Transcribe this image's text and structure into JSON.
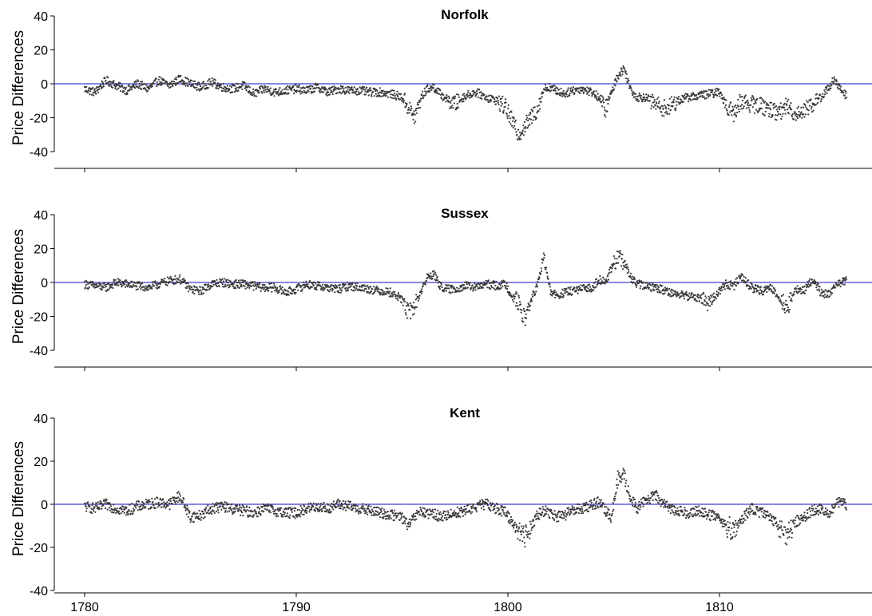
{
  "colors": {
    "points": "#3a3a3a",
    "zero_line": "#3d3dd6",
    "axis": "#000000",
    "background": "#ffffff"
  },
  "chart_data": [
    {
      "type": "scatter",
      "title": "Norfolk",
      "ylabel": "Price Differences",
      "xlabel": "",
      "xlim": [
        1778.5,
        1816.4
      ],
      "ylim": [
        -47,
        40
      ],
      "yticks": [
        -40,
        -20,
        0,
        20,
        40
      ],
      "xtick_marks": [
        1780,
        1790,
        1800,
        1810
      ],
      "xtick_labels": [],
      "reference_line": {
        "y": 0
      },
      "grid": false,
      "series": [
        {
          "x": [
            1780.0,
            1780.5,
            1781.0,
            1781.5,
            1782.0,
            1782.5,
            1783.0,
            1783.5,
            1784.0,
            1784.5,
            1785.0,
            1785.5,
            1786.0,
            1786.5,
            1787.0,
            1787.5,
            1788.0,
            1788.5,
            1789.0,
            1789.5,
            1790.0,
            1790.5,
            1791.0,
            1791.5,
            1792.0,
            1792.5,
            1793.0,
            1793.5,
            1794.0,
            1794.5,
            1795.0,
            1795.3,
            1795.6,
            1795.9,
            1796.2,
            1796.5,
            1796.8,
            1797.1,
            1797.5,
            1798.0,
            1798.5,
            1799.0,
            1799.5,
            1799.9,
            1800.2,
            1800.5,
            1800.8,
            1801.1,
            1801.4,
            1801.7,
            1802.0,
            1802.3,
            1802.7,
            1803.0,
            1803.5,
            1804.0,
            1804.3,
            1804.6,
            1804.9,
            1805.2,
            1805.5,
            1805.8,
            1806.1,
            1806.5,
            1807.0,
            1807.5,
            1808.0,
            1808.5,
            1809.0,
            1809.5,
            1810.0,
            1810.3,
            1810.7,
            1811.0,
            1811.5,
            1812.0,
            1812.4,
            1812.8,
            1813.2,
            1813.6,
            1814.0,
            1814.4,
            1814.8,
            1815.1,
            1815.4,
            1815.7,
            1816.0
          ],
          "y": [
            -3,
            -5,
            2,
            -1,
            -4,
            0,
            -3,
            2,
            -1,
            3,
            0,
            -2,
            1,
            -2,
            -3,
            -1,
            -6,
            -3,
            -5,
            -4,
            -3,
            -4,
            -2,
            -5,
            -3,
            -4,
            -4,
            -5,
            -5,
            -6,
            -8,
            -14,
            -20,
            -8,
            -3,
            -2,
            -6,
            -9,
            -12,
            -7,
            -5,
            -8,
            -10,
            -14,
            -22,
            -30,
            -25,
            -20,
            -15,
            -3,
            -2,
            -4,
            -6,
            -4,
            -3,
            -5,
            -8,
            -15,
            -5,
            5,
            9,
            -3,
            -8,
            -8,
            -12,
            -15,
            -10,
            -8,
            -7,
            -6,
            -5,
            -12,
            -18,
            -10,
            -12,
            -13,
            -15,
            -17,
            -13,
            -18,
            -15,
            -12,
            -8,
            -3,
            2,
            -3,
            -7
          ]
        }
      ]
    },
    {
      "type": "scatter",
      "title": "Sussex",
      "ylabel": "Price Differences",
      "xlabel": "",
      "xlim": [
        1778.5,
        1816.4
      ],
      "ylim": [
        -47,
        40
      ],
      "yticks": [
        -40,
        -20,
        0,
        20,
        40
      ],
      "xtick_marks": [
        1780,
        1790,
        1800,
        1810
      ],
      "xtick_labels": [],
      "reference_line": {
        "y": 0
      },
      "grid": false,
      "series": [
        {
          "x": [
            1780.0,
            1780.5,
            1781.0,
            1781.5,
            1782.0,
            1782.5,
            1783.0,
            1783.5,
            1784.0,
            1784.5,
            1785.0,
            1785.5,
            1786.0,
            1786.5,
            1787.0,
            1787.5,
            1788.0,
            1788.5,
            1789.0,
            1789.5,
            1790.0,
            1790.5,
            1791.0,
            1791.5,
            1792.0,
            1792.5,
            1793.0,
            1793.5,
            1794.0,
            1794.5,
            1795.0,
            1795.3,
            1795.6,
            1795.9,
            1796.2,
            1796.5,
            1796.8,
            1797.1,
            1797.5,
            1798.0,
            1798.5,
            1799.0,
            1799.5,
            1799.9,
            1800.2,
            1800.5,
            1800.8,
            1801.1,
            1801.4,
            1801.7,
            1802.0,
            1802.3,
            1802.7,
            1803.0,
            1803.5,
            1804.0,
            1804.3,
            1804.6,
            1804.9,
            1805.2,
            1805.5,
            1805.8,
            1806.1,
            1806.5,
            1807.0,
            1807.5,
            1808.0,
            1808.5,
            1809.0,
            1809.5,
            1810.0,
            1810.3,
            1810.7,
            1811.0,
            1811.5,
            1812.0,
            1812.4,
            1812.8,
            1813.2,
            1813.6,
            1814.0,
            1814.4,
            1814.8,
            1815.1,
            1815.4,
            1815.7,
            1816.0
          ],
          "y": [
            -1,
            -2,
            -3,
            0,
            -1,
            -2,
            -3,
            -1,
            1,
            2,
            -4,
            -5,
            -1,
            0,
            -1,
            -1,
            -2,
            -3,
            -3,
            -6,
            -4,
            -1,
            -2,
            -3,
            -4,
            -2,
            -3,
            -4,
            -5,
            -6,
            -10,
            -18,
            -14,
            -5,
            3,
            5,
            -2,
            -4,
            -4,
            -2,
            -3,
            -1,
            -2,
            -1,
            -8,
            -12,
            -22,
            -10,
            -2,
            15,
            -5,
            -8,
            -6,
            -5,
            -4,
            -3,
            2,
            0,
            8,
            15,
            12,
            3,
            -1,
            -2,
            -3,
            -5,
            -7,
            -8,
            -9,
            -12,
            -5,
            -1,
            -2,
            4,
            -3,
            -5,
            -3,
            -8,
            -15,
            -4,
            -5,
            2,
            -6,
            -7,
            -4,
            0,
            1
          ]
        }
      ]
    },
    {
      "type": "scatter",
      "title": "Kent",
      "ylabel": "Price Differences",
      "xlabel": "",
      "xlim": [
        1778.5,
        1816.4
      ],
      "ylim": [
        -52,
        40
      ],
      "yticks": [
        -40,
        -20,
        0,
        20,
        40
      ],
      "xtick_marks": [
        1780,
        1790,
        1800,
        1810
      ],
      "xtick_labels": [
        "1780",
        "1790",
        "1800",
        "1810"
      ],
      "reference_line": {
        "y": 0
      },
      "grid": false,
      "series": [
        {
          "x": [
            1780.0,
            1780.5,
            1781.0,
            1781.5,
            1782.0,
            1782.5,
            1783.0,
            1783.5,
            1784.0,
            1784.5,
            1785.0,
            1785.5,
            1786.0,
            1786.5,
            1787.0,
            1787.5,
            1788.0,
            1788.5,
            1789.0,
            1789.5,
            1790.0,
            1790.5,
            1791.0,
            1791.5,
            1792.0,
            1792.5,
            1793.0,
            1793.5,
            1794.0,
            1794.5,
            1795.0,
            1795.3,
            1795.6,
            1795.9,
            1796.2,
            1796.5,
            1796.8,
            1797.1,
            1797.5,
            1798.0,
            1798.5,
            1799.0,
            1799.5,
            1799.9,
            1800.2,
            1800.5,
            1800.8,
            1801.1,
            1801.4,
            1801.7,
            1802.0,
            1802.3,
            1802.7,
            1803.0,
            1803.5,
            1804.0,
            1804.3,
            1804.6,
            1804.9,
            1805.2,
            1805.5,
            1805.8,
            1806.1,
            1806.5,
            1807.0,
            1807.5,
            1808.0,
            1808.5,
            1809.0,
            1809.5,
            1810.0,
            1810.3,
            1810.7,
            1811.0,
            1811.5,
            1812.0,
            1812.4,
            1812.8,
            1813.2,
            1813.6,
            1814.0,
            1814.4,
            1814.8,
            1815.1,
            1815.4,
            1815.7,
            1816.0
          ],
          "y": [
            -1,
            -2,
            0,
            -2,
            -3,
            -1,
            0,
            1,
            0,
            4,
            -6,
            -5,
            -2,
            -1,
            -2,
            -3,
            -4,
            -2,
            -3,
            -4,
            -4,
            -2,
            -1,
            -2,
            0,
            -1,
            -2,
            -3,
            -4,
            -5,
            -6,
            -10,
            -6,
            -3,
            -5,
            -4,
            -6,
            -5,
            -4,
            -3,
            -1,
            0,
            -2,
            -4,
            -8,
            -12,
            -15,
            -10,
            -5,
            -3,
            -4,
            -6,
            -5,
            -3,
            -2,
            0,
            1,
            -3,
            -6,
            12,
            12,
            3,
            -2,
            2,
            4,
            -1,
            -3,
            -4,
            -3,
            -5,
            -6,
            -10,
            -12,
            -8,
            -2,
            -4,
            -6,
            -10,
            -14,
            -8,
            -6,
            -3,
            -2,
            -5,
            -1,
            1,
            0
          ]
        }
      ]
    }
  ]
}
